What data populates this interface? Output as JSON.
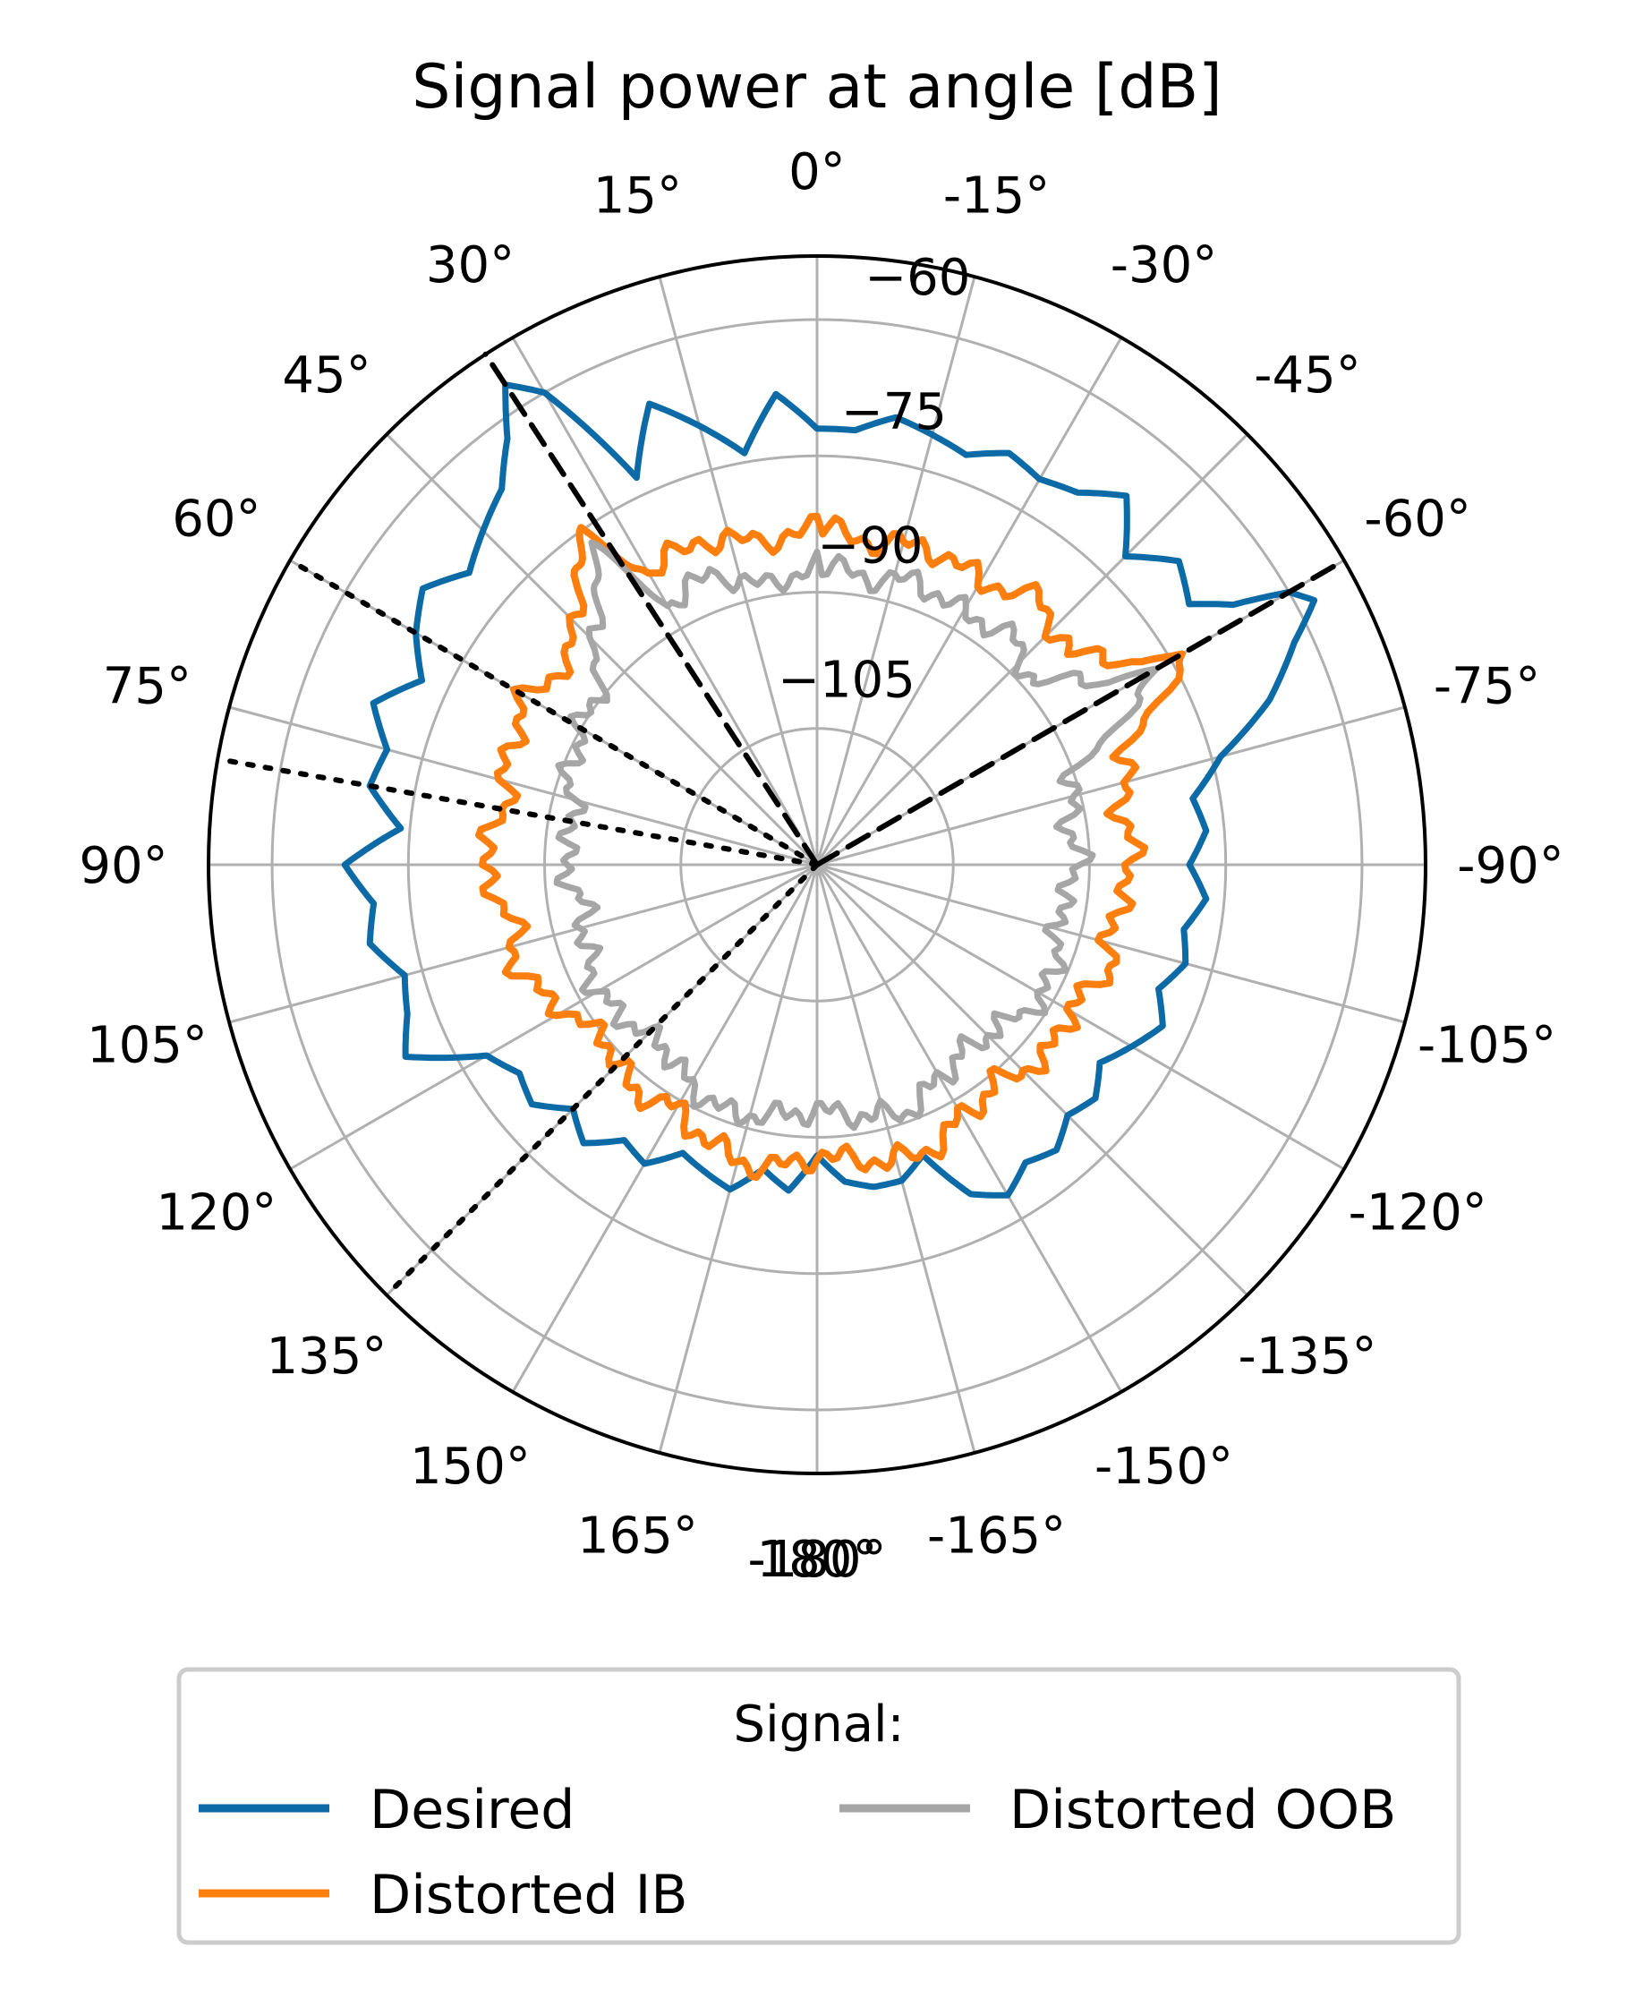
{
  "chart_data": {
    "type": "polar-line",
    "title": "Signal power at angle [dB]",
    "theta_direction": "clockwise-negative (0° at top, positive angles to the left)",
    "angle_ticks": [
      "0°",
      "15°",
      "30°",
      "45°",
      "60°",
      "75°",
      "90°",
      "105°",
      "120°",
      "135°",
      "150°",
      "165°",
      "180°",
      "-165°",
      "-150°",
      "-135°",
      "-120°",
      "-105°",
      "-90°",
      "-75°",
      "-60°",
      "-45°",
      "-30°",
      "-15°",
      "-180°"
    ],
    "angle_tick_values": [
      0,
      15,
      30,
      45,
      60,
      75,
      90,
      105,
      120,
      135,
      150,
      165,
      180,
      -165,
      -150,
      -135,
      -120,
      -105,
      -90,
      -75,
      -60,
      -45,
      -30,
      -15,
      -180
    ],
    "radial_ticks": [
      "−105",
      "−90",
      "−75",
      "−60"
    ],
    "radial_tick_values": [
      -105,
      -90,
      -75,
      -60
    ],
    "rlim": [
      -120,
      -53
    ],
    "grid": true,
    "legend": {
      "title": "Signal:",
      "placement": "bottom",
      "entries": [
        "Desired",
        "Distorted IB",
        "Distorted OOB"
      ]
    },
    "series": [
      {
        "name": "Desired",
        "color": "#0c6aa6",
        "theta": [
          0,
          5,
          10,
          15,
          20,
          25,
          30,
          33,
          36,
          40,
          45,
          50,
          55,
          60,
          65,
          70,
          75,
          80,
          85,
          90,
          95,
          100,
          105,
          110,
          115,
          120,
          125,
          130,
          135,
          140,
          145,
          150,
          155,
          160,
          165,
          170,
          175,
          180,
          -175,
          -170,
          -165,
          -160,
          -155,
          -150,
          -145,
          -140,
          -135,
          -130,
          -125,
          -120,
          -115,
          -110,
          -105,
          -100,
          -95,
          -90,
          -85,
          -80,
          -75,
          -70,
          -65,
          -62,
          -60,
          -58,
          -55,
          -50,
          -45,
          -40,
          -35,
          -30,
          -25,
          -20,
          -15,
          -10,
          -5
        ],
        "r": [
          -72,
          -68,
          -74,
          -70,
          -66,
          -73,
          -60,
          -57,
          -62,
          -66,
          -68,
          -70,
          -67,
          -69,
          -72,
          -68,
          -71,
          -70,
          -74,
          -68,
          -71,
          -70,
          -73,
          -72,
          -70,
          -78,
          -80,
          -79,
          -82,
          -80,
          -83,
          -82,
          -85,
          -84,
          -83,
          -86,
          -84,
          -88,
          -85,
          -84,
          -84,
          -86,
          -80,
          -78,
          -80,
          -79,
          -81,
          -80,
          -82,
          -80,
          -78,
          -80,
          -78,
          -79,
          -77,
          -79,
          -77,
          -78,
          -74,
          -67,
          -62,
          -58,
          -60,
          -66,
          -70,
          -68,
          -72,
          -67,
          -70,
          -71,
          -70,
          -72,
          -71,
          -70,
          -72
        ]
      },
      {
        "name": "Distorted IB",
        "color": "#ff7f0e",
        "theta": [
          0,
          10,
          20,
          30,
          35,
          40,
          50,
          60,
          70,
          80,
          90,
          100,
          110,
          120,
          130,
          140,
          150,
          160,
          170,
          180,
          -170,
          -160,
          -150,
          -140,
          -130,
          -120,
          -110,
          -100,
          -90,
          -80,
          -70,
          -62,
          -60,
          -58,
          -50,
          -40,
          -30,
          -20,
          -10
        ],
        "r": [
          -83,
          -84,
          -82,
          -83,
          -76,
          -79,
          -85,
          -83,
          -84,
          -85,
          -83,
          -86,
          -85,
          -88,
          -90,
          -88,
          -89,
          -87,
          -86,
          -88,
          -87,
          -86,
          -88,
          -89,
          -87,
          -88,
          -86,
          -87,
          -85,
          -86,
          -84,
          -76,
          -73,
          -78,
          -84,
          -82,
          -84,
          -83,
          -84
        ]
      },
      {
        "name": "Distorted OOB",
        "color": "#a6a6a6",
        "theta": [
          0,
          10,
          20,
          30,
          35,
          40,
          50,
          60,
          70,
          80,
          90,
          100,
          110,
          120,
          130,
          140,
          150,
          160,
          170,
          180,
          -170,
          -160,
          -150,
          -140,
          -130,
          -120,
          -110,
          -100,
          -90,
          -80,
          -70,
          -62,
          -60,
          -58,
          -50,
          -40,
          -30,
          -20,
          -10
        ],
        "r": [
          -87,
          -89,
          -86,
          -87,
          -78,
          -82,
          -89,
          -90,
          -91,
          -93,
          -92,
          -94,
          -93,
          -92,
          -93,
          -94,
          -92,
          -91,
          -92,
          -93,
          -92,
          -91,
          -93,
          -94,
          -93,
          -91,
          -92,
          -93,
          -91,
          -92,
          -90,
          -80,
          -76,
          -82,
          -89,
          -87,
          -88,
          -87,
          -88
        ]
      }
    ],
    "reference_lines": [
      {
        "style": "dashed",
        "theta": 33
      },
      {
        "style": "dashed",
        "theta": -60
      },
      {
        "style": "dotted",
        "theta": 60
      },
      {
        "style": "dotted",
        "theta": 80
      },
      {
        "style": "dotted",
        "theta": 135
      }
    ]
  }
}
